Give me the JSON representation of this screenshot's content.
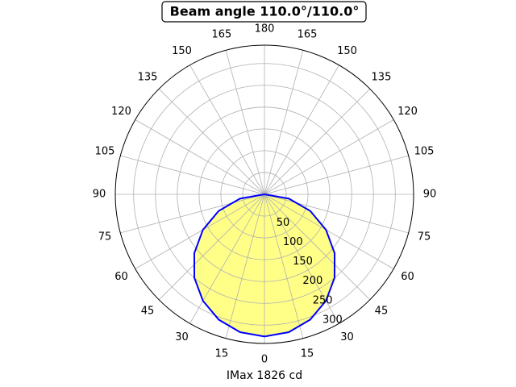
{
  "chart_data": {
    "type": "polar",
    "title": "Beam angle 110.0°/110.0°",
    "xlabel": "IMax 1826 cd",
    "theta": [
      -90,
      -80,
      -70,
      -60,
      -50,
      -40,
      -30,
      -20,
      -10,
      0,
      10,
      20,
      30,
      40,
      50,
      60,
      70,
      80,
      90
    ],
    "values": [
      0,
      57,
      112,
      163,
      210,
      250,
      282,
      306,
      321,
      326,
      321,
      306,
      282,
      250,
      210,
      163,
      112,
      57,
      0
    ],
    "line_color": "#0000ff",
    "fill_color": "#ffff88",
    "rlim": [
      0,
      342
    ],
    "rticks": [
      50,
      100,
      150,
      200,
      250,
      300
    ],
    "thetaticks": [
      0,
      15,
      30,
      45,
      60,
      75,
      90,
      105,
      120,
      135,
      150,
      165,
      180,
      {
        "value": -165,
        "label": "165"
      },
      {
        "value": -150,
        "label": "150"
      },
      {
        "value": -135,
        "label": "135"
      },
      {
        "value": -120,
        "label": "120"
      },
      {
        "value": -105,
        "label": "105"
      },
      {
        "value": -90,
        "label": "90"
      },
      {
        "value": -75,
        "label": "75"
      },
      {
        "value": -60,
        "label": "60"
      },
      {
        "value": -45,
        "label": "45"
      },
      {
        "value": -30,
        "label": "30"
      },
      {
        "value": -15,
        "label": "15"
      }
    ],
    "grid": true
  }
}
